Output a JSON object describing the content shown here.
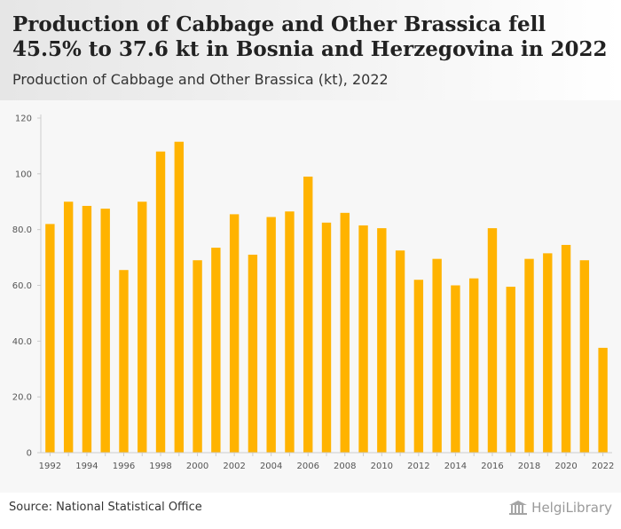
{
  "header": {
    "title": "Production of Cabbage and Other Brassica fell 45.5% to 37.6 kt in Bosnia and Herzegovina in 2022",
    "subtitle": "Production of Cabbage and Other Brassica (kt), 2022"
  },
  "footer": {
    "source": "Source: National Statistical Office",
    "brand": "HelgiLibrary"
  },
  "chart_data": {
    "type": "bar",
    "title": "Production of Cabbage and Other Brassica fell 45.5% to 37.6 kt in Bosnia and Herzegovina in 2022",
    "subtitle": "Production of Cabbage and Other Brassica (kt), 2022",
    "xlabel": "",
    "ylabel": "",
    "ylim": [
      0,
      120
    ],
    "yticks": [
      0,
      20,
      40,
      60,
      80,
      100,
      120
    ],
    "ytick_labels": [
      "0",
      "20.0",
      "40.0",
      "60.0",
      "80.0",
      "100",
      "120"
    ],
    "grid": false,
    "legend": "none",
    "bar_color": "#ffb300",
    "categories": [
      "1992",
      "1993",
      "1994",
      "1995",
      "1996",
      "1997",
      "1998",
      "1999",
      "2000",
      "2001",
      "2002",
      "2003",
      "2004",
      "2005",
      "2006",
      "2007",
      "2008",
      "2009",
      "2010",
      "2011",
      "2012",
      "2013",
      "2014",
      "2015",
      "2016",
      "2017",
      "2018",
      "2019",
      "2020",
      "2021",
      "2022"
    ],
    "xtick_labels": [
      "1992",
      "",
      "1994",
      "",
      "1996",
      "",
      "1998",
      "",
      "2000",
      "",
      "2002",
      "",
      "2004",
      "",
      "2006",
      "",
      "2008",
      "",
      "2010",
      "",
      "2012",
      "",
      "2014",
      "",
      "2016",
      "",
      "2018",
      "",
      "2020",
      "",
      "2022"
    ],
    "values": [
      82.0,
      90.0,
      88.5,
      87.5,
      65.5,
      90.0,
      108.0,
      111.5,
      69.0,
      73.5,
      85.5,
      71.0,
      84.5,
      86.5,
      99.0,
      82.5,
      86.0,
      81.5,
      80.5,
      72.5,
      62.0,
      69.5,
      60.0,
      62.5,
      80.5,
      59.5,
      69.5,
      71.5,
      74.5,
      69.0,
      37.6
    ]
  }
}
